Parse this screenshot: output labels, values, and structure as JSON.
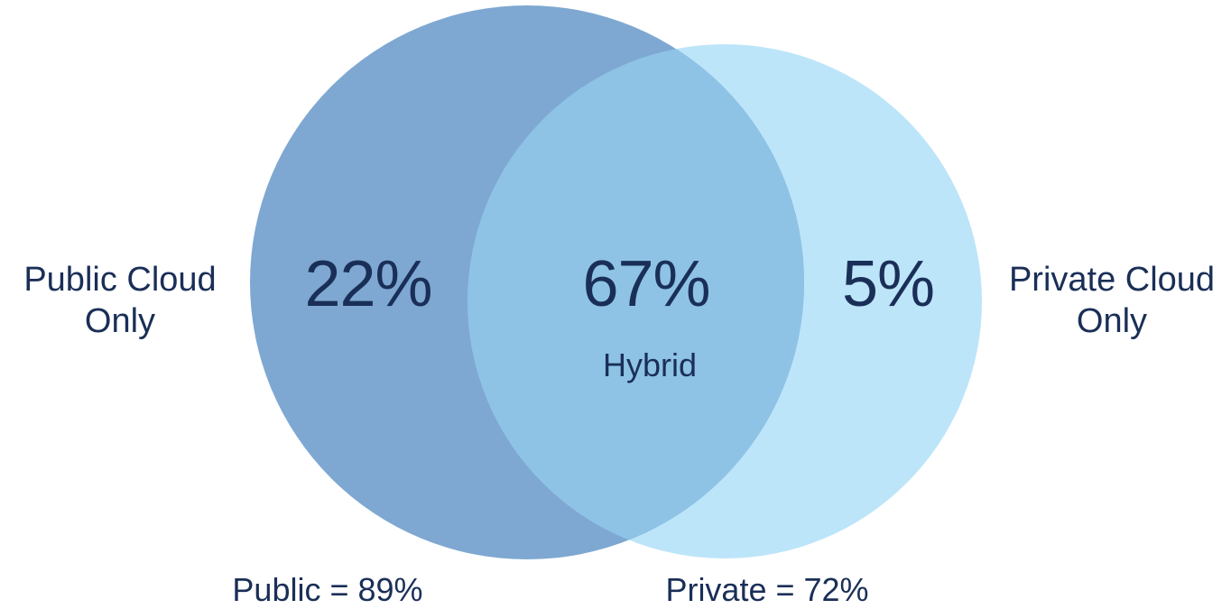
{
  "colors": {
    "public_circle": "#6c9ccc",
    "private_circle": "#bde5f9",
    "overlap": "#8ec3e6",
    "text": "#1a2f57",
    "background": "#ffffff"
  },
  "venn": {
    "left_set": {
      "side_label_line1": "Public Cloud",
      "side_label_line2": "Only",
      "only_value": "22%",
      "total_label": "Public = 89%"
    },
    "right_set": {
      "side_label_line1": "Private Cloud",
      "side_label_line2": "Only",
      "only_value": "5%",
      "total_label": "Private = 72%"
    },
    "intersection": {
      "value": "67%",
      "label": "Hybrid"
    }
  }
}
